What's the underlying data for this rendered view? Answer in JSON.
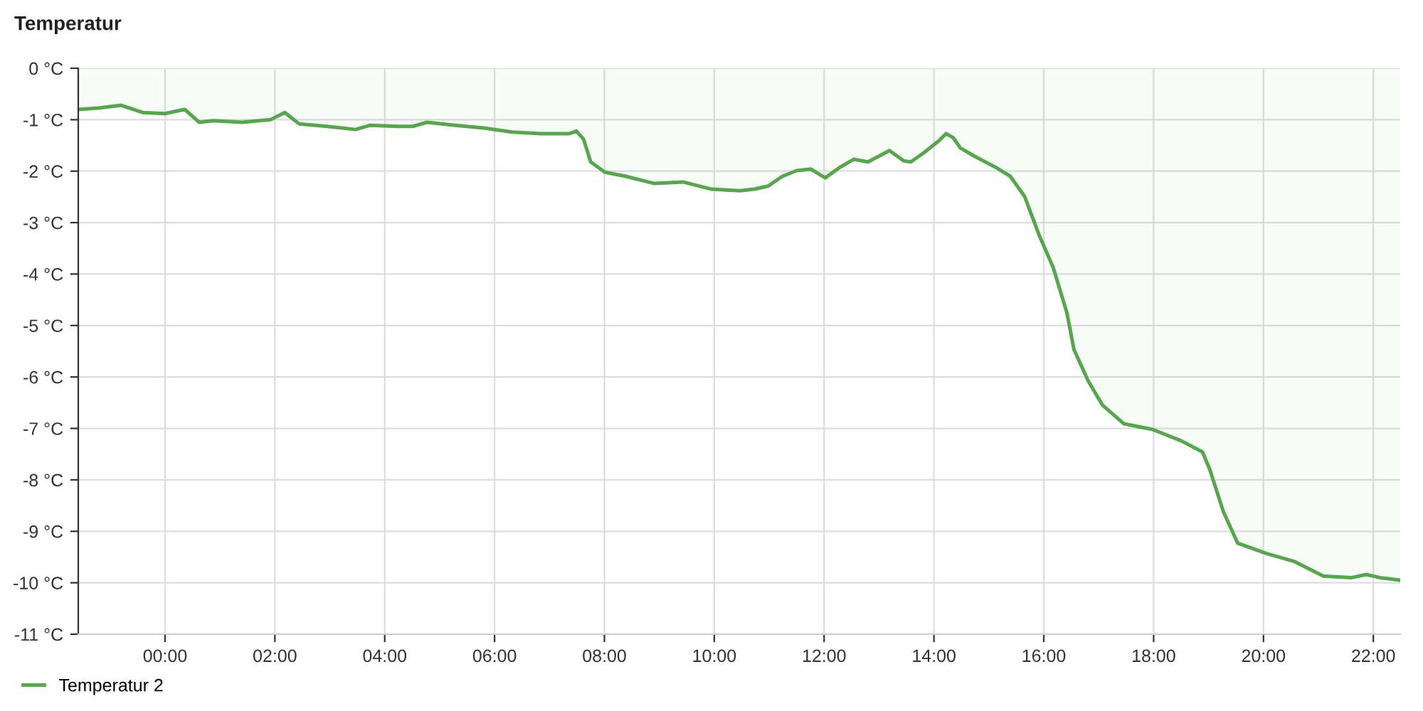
{
  "chart_data": {
    "type": "area",
    "title": "Temperatur",
    "x": [
      -1.58,
      -1.19,
      -0.8,
      -0.41,
      0,
      0.36,
      0.62,
      0.88,
      1.4,
      1.92,
      2.18,
      2.44,
      2.95,
      3.47,
      3.73,
      4.25,
      4.51,
      4.77,
      5.28,
      5.8,
      6.32,
      6.84,
      7.36,
      7.49,
      7.62,
      7.75,
      8.01,
      8.39,
      8.91,
      9.43,
      9.95,
      10.47,
      10.73,
      10.98,
      11.24,
      11.5,
      11.76,
      12.02,
      12.28,
      12.54,
      12.8,
      13.19,
      13.45,
      13.58,
      13.83,
      14.09,
      14.22,
      14.35,
      14.48,
      14.74,
      15.13,
      15.39,
      15.65,
      15.91,
      16.17,
      16.42,
      16.55,
      16.81,
      17.07,
      17.46,
      17.98,
      18.5,
      18.89,
      19.02,
      19.27,
      19.53,
      20.05,
      20.57,
      21.09,
      21.61,
      21.87,
      22.12,
      22.49
    ],
    "series": [
      {
        "name": "Temperatur 2",
        "color": "#56a64b",
        "values": [
          -0.8,
          -0.77,
          -0.72,
          -0.86,
          -0.88,
          -0.8,
          -1.05,
          -1.02,
          -1.05,
          -1.0,
          -0.86,
          -1.08,
          -1.13,
          -1.19,
          -1.11,
          -1.13,
          -1.13,
          -1.05,
          -1.11,
          -1.16,
          -1.24,
          -1.27,
          -1.27,
          -1.22,
          -1.38,
          -1.82,
          -2.02,
          -2.1,
          -2.24,
          -2.21,
          -2.35,
          -2.38,
          -2.35,
          -2.29,
          -2.1,
          -1.99,
          -1.96,
          -2.13,
          -1.93,
          -1.77,
          -1.82,
          -1.6,
          -1.8,
          -1.82,
          -1.63,
          -1.41,
          -1.27,
          -1.35,
          -1.55,
          -1.71,
          -1.93,
          -2.1,
          -2.49,
          -3.23,
          -3.87,
          -4.75,
          -5.47,
          -6.08,
          -6.55,
          -6.91,
          -7.02,
          -7.24,
          -7.46,
          -7.79,
          -8.62,
          -9.23,
          -9.43,
          -9.59,
          -9.87,
          -9.9,
          -9.84,
          -9.9,
          -9.95
        ]
      }
    ],
    "xlim": [
      -1.58,
      22.49
    ],
    "xticks": [
      {
        "value": 0,
        "label": "00:00"
      },
      {
        "value": 2,
        "label": "02:00"
      },
      {
        "value": 4,
        "label": "04:00"
      },
      {
        "value": 6,
        "label": "06:00"
      },
      {
        "value": 8,
        "label": "08:00"
      },
      {
        "value": 10,
        "label": "10:00"
      },
      {
        "value": 12,
        "label": "12:00"
      },
      {
        "value": 14,
        "label": "14:00"
      },
      {
        "value": 16,
        "label": "16:00"
      },
      {
        "value": 18,
        "label": "18:00"
      },
      {
        "value": 20,
        "label": "20:00"
      },
      {
        "value": 22,
        "label": "22:00"
      }
    ],
    "ylim": [
      -11,
      0
    ],
    "yticks": [
      {
        "value": 0,
        "label": "0 °C"
      },
      {
        "value": -1,
        "label": "-1 °C"
      },
      {
        "value": -2,
        "label": "-2 °C"
      },
      {
        "value": -3,
        "label": "-3 °C"
      },
      {
        "value": -4,
        "label": "-4 °C"
      },
      {
        "value": -5,
        "label": "-5 °C"
      },
      {
        "value": -6,
        "label": "-6 °C"
      },
      {
        "value": -7,
        "label": "-7 °C"
      },
      {
        "value": -8,
        "label": "-8 °C"
      },
      {
        "value": -9,
        "label": "-9 °C"
      },
      {
        "value": -10,
        "label": "-10 °C"
      },
      {
        "value": -11,
        "label": "-11 °C"
      }
    ],
    "grid": true,
    "legend": "bottom left"
  }
}
